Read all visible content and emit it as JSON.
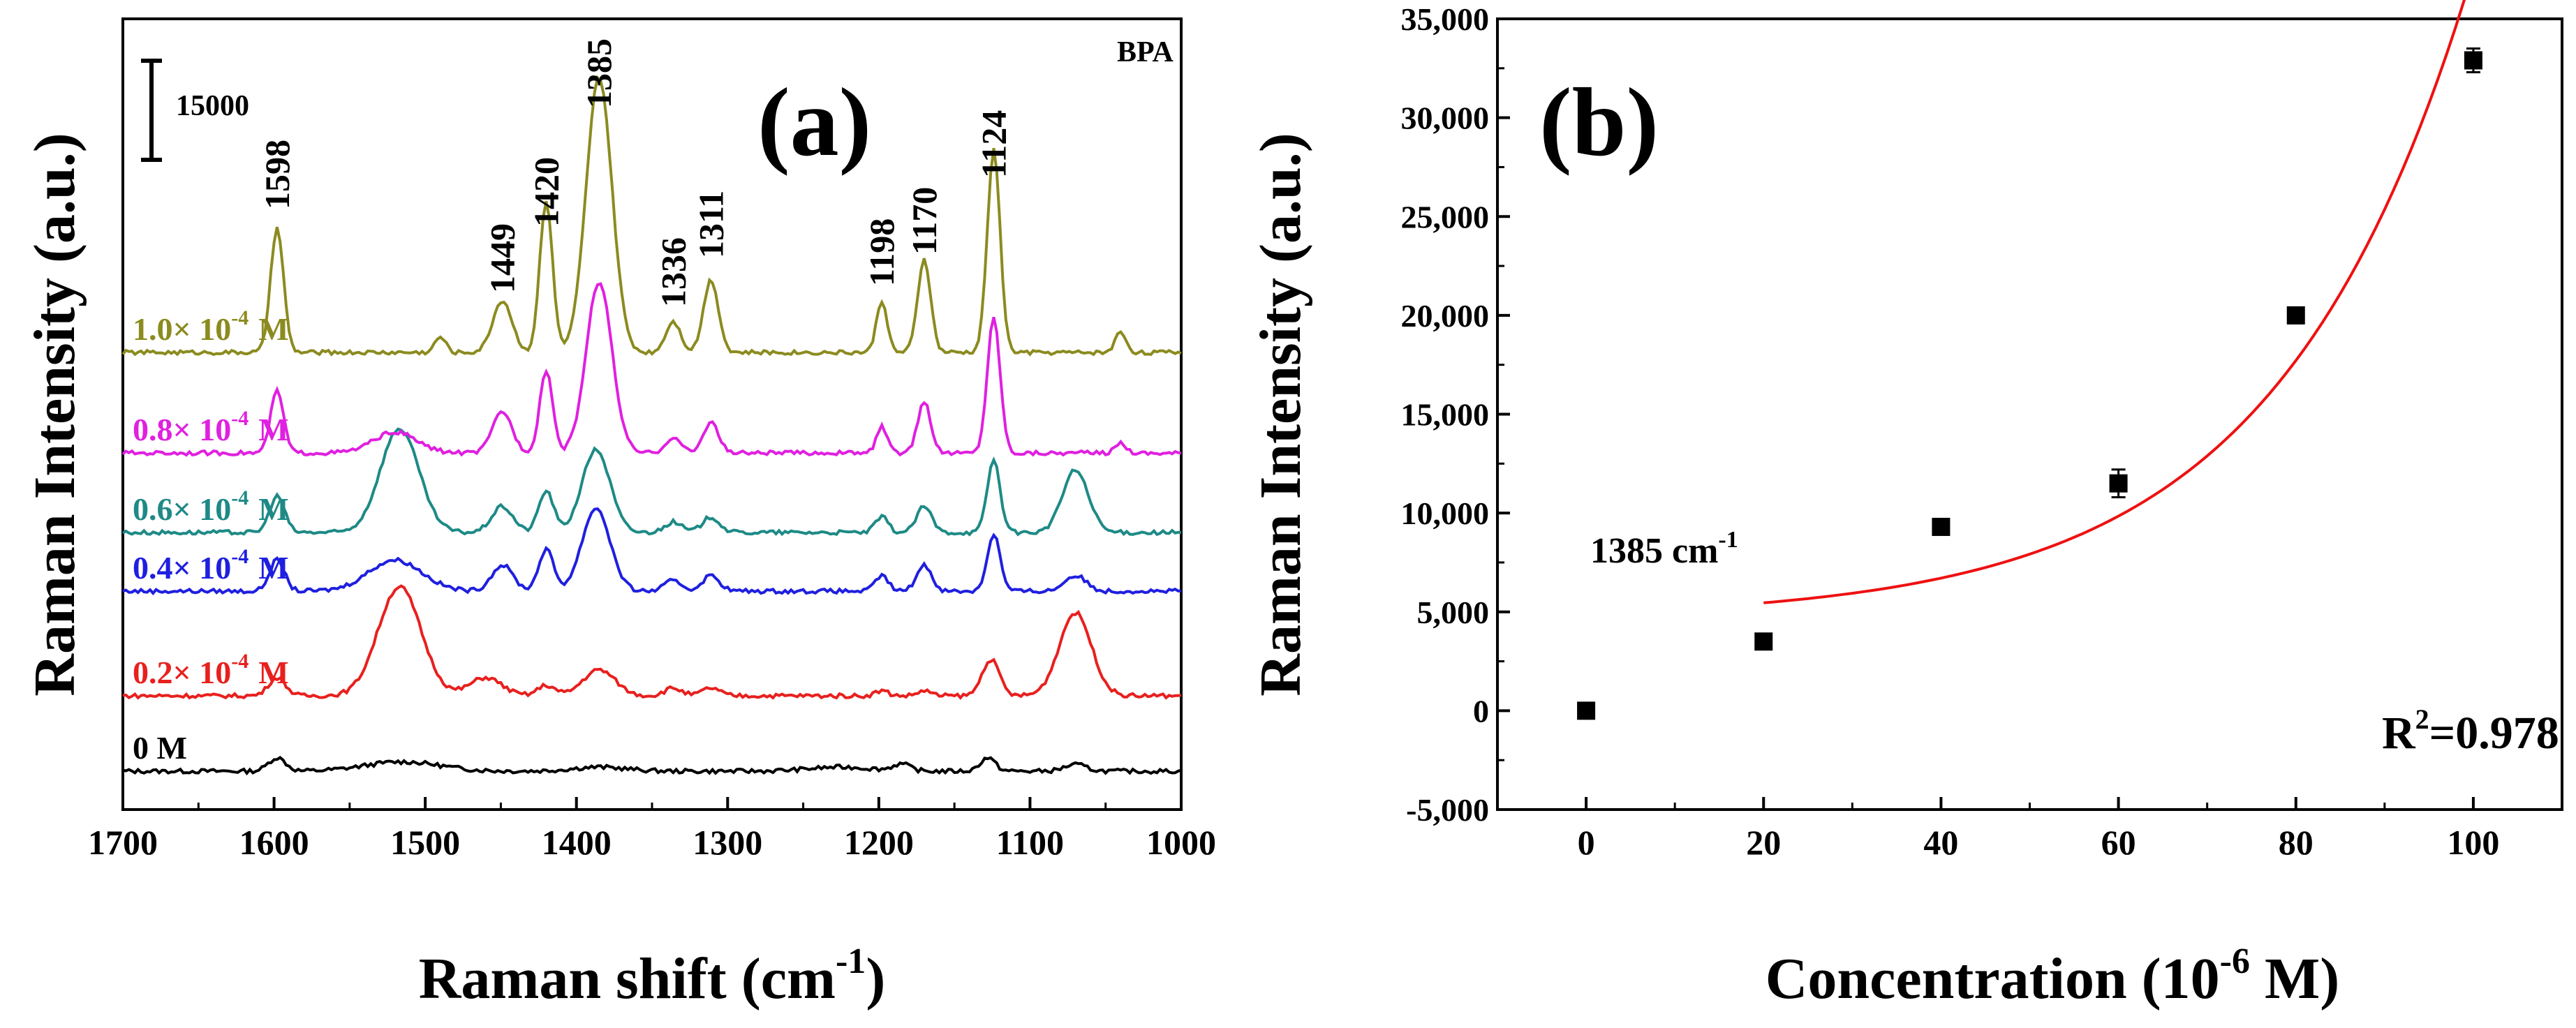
{
  "chart_data": [
    {
      "panel": "(a)",
      "type": "line",
      "title": "",
      "panel_label": "(a)",
      "analyte_label": "BPA",
      "xlabel": "Raman shift (cm",
      "xlabel_sup": "-1",
      "xlabel_end": ")",
      "ylabel": "Raman Intensity (a.u.)",
      "xlim": [
        1700,
        1000
      ],
      "x_reversed": true,
      "xticks": [
        1700,
        1600,
        1500,
        1400,
        1300,
        1200,
        1100,
        1000
      ],
      "grid": false,
      "scale_bar": {
        "label": "15000",
        "value": 15000
      },
      "peak_labels": [
        {
          "x": 1598,
          "text": "1598"
        },
        {
          "x": 1449,
          "text": "1449"
        },
        {
          "x": 1420,
          "text": "1420"
        },
        {
          "x": 1385,
          "text": "1385"
        },
        {
          "x": 1336,
          "text": "1336"
        },
        {
          "x": 1311,
          "text": "1311"
        },
        {
          "x": 1198,
          "text": "1198"
        },
        {
          "x": 1170,
          "text": "1170"
        },
        {
          "x": 1124,
          "text": "1124"
        }
      ],
      "series": [
        {
          "name": "0 M",
          "prefix": "0 M",
          "exp": "",
          "unit": "",
          "color": "#000000",
          "offset": 0,
          "scale": 0.32,
          "peaks": [
            [
              1598,
              0.5,
              8
            ],
            [
              1515,
              0.35,
              35
            ],
            [
              1385,
              0.15,
              25
            ],
            [
              1225,
              0.15,
              30
            ],
            [
              1185,
              0.25,
              8
            ],
            [
              1128,
              0.5,
              7
            ],
            [
              1070,
              0.25,
              10
            ]
          ]
        },
        {
          "name": "0.2× 10-4 M",
          "prefix": "0.2× 10",
          "exp": "-4",
          "unit": "M",
          "color": "#e8201e",
          "offset": 0.9,
          "scale": 0.62,
          "peaks": [
            [
              1598,
              0.35,
              8
            ],
            [
              1517,
              2.1,
              20
            ],
            [
              1460,
              0.35,
              15
            ],
            [
              1420,
              0.2,
              8
            ],
            [
              1385,
              0.5,
              15
            ],
            [
              1336,
              0.15,
              8
            ],
            [
              1311,
              0.15,
              8
            ],
            [
              1198,
              0.1,
              6
            ],
            [
              1170,
              0.1,
              6
            ],
            [
              1126,
              0.7,
              8
            ],
            [
              1070,
              1.6,
              15
            ]
          ]
        },
        {
          "name": "0.4× 10-4 M",
          "prefix": "0.4× 10",
          "exp": "-4",
          "unit": "M",
          "color": "#1f1fe0",
          "offset": 2.15,
          "scale": 0.62,
          "peaks": [
            [
              1598,
              0.6,
              7
            ],
            [
              1520,
              0.6,
              25
            ],
            [
              1449,
              0.5,
              10
            ],
            [
              1420,
              0.8,
              7
            ],
            [
              1387,
              1.6,
              13
            ],
            [
              1336,
              0.2,
              8
            ],
            [
              1311,
              0.3,
              8
            ],
            [
              1198,
              0.3,
              6
            ],
            [
              1170,
              0.5,
              7
            ],
            [
              1124,
              1.1,
              6
            ],
            [
              1070,
              0.3,
              10
            ]
          ]
        },
        {
          "name": "0.6× 10-4 M",
          "prefix": "0.6× 10",
          "exp": "-4",
          "unit": "M",
          "color": "#1e8a86",
          "offset": 2.85,
          "scale": 0.62,
          "peaks": [
            [
              1598,
              0.7,
              7
            ],
            [
              1517,
              2.0,
              18
            ],
            [
              1449,
              0.5,
              10
            ],
            [
              1420,
              0.8,
              7
            ],
            [
              1387,
              1.6,
              13
            ],
            [
              1336,
              0.2,
              8
            ],
            [
              1311,
              0.3,
              8
            ],
            [
              1198,
              0.3,
              6
            ],
            [
              1170,
              0.5,
              7
            ],
            [
              1124,
              1.4,
              6
            ],
            [
              1070,
              1.2,
              12
            ]
          ]
        },
        {
          "name": "0.8× 10-4 M",
          "prefix": "0.8× 10",
          "exp": "-4",
          "unit": "M",
          "color": "#e020e0",
          "offset": 3.8,
          "scale": 0.62,
          "peaks": [
            [
              1598,
              1.2,
              6
            ],
            [
              1520,
              0.4,
              20
            ],
            [
              1449,
              0.8,
              9
            ],
            [
              1420,
              1.6,
              6
            ],
            [
              1385,
              3.3,
              12
            ],
            [
              1336,
              0.3,
              7
            ],
            [
              1311,
              0.6,
              7
            ],
            [
              1198,
              0.5,
              5
            ],
            [
              1170,
              1.0,
              6
            ],
            [
              1124,
              2.6,
              6
            ],
            [
              1040,
              0.2,
              5
            ]
          ]
        },
        {
          "name": "1.0× 10-4 M",
          "prefix": "1.0× 10",
          "exp": "-4",
          "unit": "M",
          "color": "#8b8b20",
          "offset": 5.0,
          "scale": 0.62,
          "peaks": [
            [
              1598,
              2.4,
              6
            ],
            [
              1490,
              0.3,
              5
            ],
            [
              1449,
              1.0,
              9
            ],
            [
              1420,
              2.9,
              6
            ],
            [
              1385,
              5.3,
              12
            ],
            [
              1336,
              0.6,
              7
            ],
            [
              1311,
              1.4,
              7
            ],
            [
              1198,
              1.0,
              5
            ],
            [
              1170,
              1.8,
              6
            ],
            [
              1124,
              3.9,
              6
            ],
            [
              1040,
              0.4,
              5
            ]
          ]
        }
      ]
    },
    {
      "panel": "(b)",
      "type": "scatter",
      "panel_label": "(b)",
      "xlabel": "Concentration (10",
      "xlabel_sup": "-6",
      "xlabel_end": " M)",
      "ylabel": "Raman Intensity (a.u.)",
      "xlim": [
        -10,
        110
      ],
      "ylim": [
        -5000,
        35000
      ],
      "xticks": [
        0,
        20,
        40,
        60,
        80,
        100
      ],
      "yticks": [
        -5000,
        0,
        5000,
        10000,
        15000,
        20000,
        25000,
        30000,
        35000
      ],
      "ytick_labels": [
        "-5,000",
        "0",
        "5,000",
        "10,000",
        "15,000",
        "20,000",
        "25,000",
        "30,000",
        "35,000"
      ],
      "grid": false,
      "annotation": "1385 cm",
      "annotation_sup": "-1",
      "r2_prefix": "R",
      "r2_sup": "2",
      "r2_value": "=0.978",
      "points": [
        {
          "x": 0,
          "y": 0,
          "err": 0
        },
        {
          "x": 20,
          "y": 3500,
          "err": 0
        },
        {
          "x": 40,
          "y": 9300,
          "err": 0
        },
        {
          "x": 60,
          "y": 11500,
          "err": 700
        },
        {
          "x": 80,
          "y": 20000,
          "err": 400
        },
        {
          "x": 100,
          "y": 32900,
          "err": 600
        }
      ],
      "fit": {
        "color": "#ee1111",
        "x_range": [
          20,
          100
        ],
        "type": "exponential",
        "a": 4010,
        "b": 3.5,
        "c": 0.0325
      }
    }
  ]
}
